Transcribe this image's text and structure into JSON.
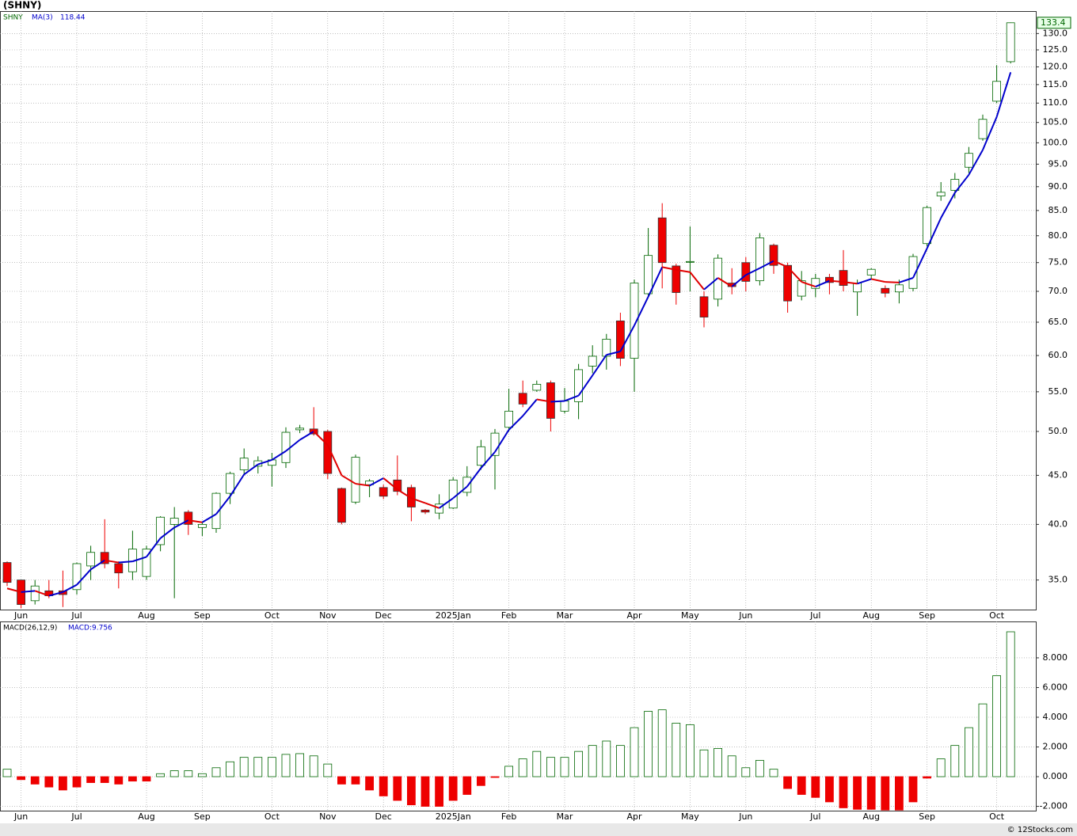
{
  "chart_data": [
    {
      "type": "candlestick",
      "title": "(SHNY)",
      "log_scale": true,
      "grid": true,
      "categories": [
        null,
        "Jun",
        null,
        null,
        null,
        "Jul",
        null,
        null,
        null,
        null,
        "Aug",
        null,
        null,
        null,
        "Sep",
        null,
        null,
        null,
        null,
        "Oct",
        null,
        null,
        null,
        "Nov",
        null,
        null,
        null,
        "Dec",
        null,
        null,
        null,
        null,
        "2025Jan",
        null,
        null,
        null,
        "Feb",
        null,
        null,
        null,
        "Mar",
        null,
        null,
        null,
        null,
        "Apr",
        null,
        null,
        null,
        "May",
        null,
        null,
        null,
        "Jun",
        null,
        null,
        null,
        null,
        "Jul",
        null,
        null,
        null,
        "Aug",
        null,
        null,
        null,
        "Sep",
        null,
        null,
        null,
        null,
        "Oct",
        null
      ],
      "series": [
        {
          "name": "SHNY",
          "up_color": "#006600",
          "down_color": "#ee0000",
          "open": [
            36.5,
            35.0,
            33.3,
            34.1,
            34.1,
            34.2,
            36.2,
            37.4,
            36.4,
            35.7,
            35.3,
            38.1,
            40.0,
            41.2,
            39.7,
            39.6,
            43.1,
            45.6,
            46.0,
            46.1,
            46.4,
            50.2,
            50.3,
            50.0,
            43.6,
            42.2,
            44.0,
            43.7,
            44.5,
            43.7,
            41.4,
            41.1,
            41.6,
            43.2,
            46.1,
            47.2,
            50.5,
            54.8,
            55.2,
            56.2,
            52.5,
            53.7,
            58.5,
            59.9,
            65.2,
            59.6,
            69.6,
            83.5,
            74.4,
            75.1,
            69.1,
            68.7,
            71.4,
            75.0,
            71.8,
            78.2,
            74.5,
            69.2,
            70.5,
            72.4,
            73.6,
            69.9,
            72.8,
            70.5,
            69.9,
            70.5,
            78.5,
            88.0,
            89.2,
            94.3,
            101.0,
            110.5,
            121.5
          ],
          "high": [
            36.6,
            35.0,
            35.0,
            35.0,
            35.8,
            36.5,
            38.0,
            40.5,
            36.6,
            39.4,
            38.0,
            40.8,
            41.7,
            41.4,
            40.2,
            43.2,
            45.4,
            48.0,
            47.1,
            47.5,
            50.5,
            50.8,
            53.0,
            50.2,
            43.7,
            47.3,
            44.6,
            44.0,
            47.2,
            44.0,
            41.5,
            43.0,
            44.8,
            46.0,
            49.0,
            50.3,
            55.4,
            56.5,
            56.5,
            56.5,
            55.5,
            58.8,
            61.5,
            63.2,
            66.5,
            72.0,
            81.5,
            86.5,
            74.8,
            81.8,
            70.0,
            76.5,
            74.0,
            76.0,
            80.5,
            78.5,
            75.0,
            73.5,
            73.0,
            73.0,
            77.3,
            72.0,
            74.0,
            71.0,
            72.0,
            76.6,
            86.0,
            91.0,
            93.0,
            99.0,
            107.0,
            120.5,
            133.5
          ],
          "low": [
            34.5,
            32.7,
            33.0,
            33.5,
            32.8,
            33.8,
            35.0,
            36.0,
            34.3,
            35.0,
            35.0,
            37.5,
            33.5,
            39.0,
            38.9,
            39.2,
            42.0,
            45.0,
            45.2,
            43.8,
            45.8,
            49.8,
            49.5,
            44.6,
            40.0,
            42.0,
            42.7,
            42.5,
            42.9,
            40.3,
            41.0,
            40.5,
            41.5,
            42.8,
            45.6,
            43.5,
            50.0,
            53.0,
            55.0,
            50.0,
            52.2,
            51.5,
            57.5,
            58.0,
            58.5,
            55.0,
            69.0,
            70.5,
            67.8,
            70.0,
            64.2,
            67.5,
            69.5,
            70.0,
            71.0,
            73.0,
            66.5,
            68.5,
            69.0,
            69.5,
            70.0,
            66.0,
            72.0,
            69.0,
            68.0,
            70.0,
            78.0,
            87.0,
            87.5,
            93.0,
            100.5,
            110.0,
            121.0
          ],
          "close": [
            34.8,
            33.0,
            34.5,
            33.7,
            33.8,
            36.4,
            37.4,
            36.4,
            35.6,
            37.7,
            37.7,
            40.7,
            40.6,
            40.0,
            40.0,
            43.1,
            45.2,
            46.9,
            46.6,
            46.7,
            49.9,
            50.4,
            49.7,
            45.2,
            40.2,
            47.0,
            44.4,
            42.8,
            43.3,
            41.7,
            41.2,
            42.0,
            44.5,
            44.8,
            48.2,
            49.8,
            52.5,
            53.4,
            56.0,
            51.6,
            53.8,
            58.0,
            59.9,
            62.4,
            59.6,
            71.4,
            76.3,
            75.0,
            69.8,
            75.2,
            65.8,
            75.8,
            70.8,
            71.7,
            79.6,
            74.5,
            68.4,
            71.8,
            72.2,
            71.5,
            71.0,
            71.4,
            73.8,
            69.7,
            71.1,
            76.1,
            85.6,
            88.8,
            91.6,
            97.5,
            105.8,
            115.9,
            133.4
          ]
        },
        {
          "name": "MA(3)",
          "up_color": "#0000cc",
          "down_color": "#e00000",
          "values": [
            34.3,
            34.0,
            34.1,
            33.7,
            34.0,
            34.6,
            35.9,
            36.7,
            36.5,
            36.6,
            37.0,
            38.7,
            39.7,
            40.4,
            40.2,
            41.0,
            42.8,
            45.1,
            46.2,
            46.7,
            47.7,
            49.0,
            50.0,
            48.4,
            45.0,
            44.1,
            43.9,
            44.7,
            43.5,
            42.6,
            42.1,
            41.6,
            42.6,
            43.8,
            45.8,
            47.6,
            50.2,
            51.9,
            54.0,
            53.7,
            53.8,
            54.5,
            57.2,
            60.1,
            60.6,
            64.5,
            69.1,
            74.2,
            73.7,
            73.3,
            70.3,
            72.3,
            70.8,
            72.8,
            74.0,
            75.3,
            74.2,
            71.6,
            70.8,
            71.8,
            71.6,
            71.3,
            72.1,
            71.6,
            71.5,
            72.3,
            77.6,
            83.5,
            88.7,
            92.6,
            98.3,
            106.4,
            118.44
          ]
        }
      ],
      "ylim": [
        32.6,
        137.2
      ],
      "yticks": [
        {
          "value": 35,
          "label": "35.0"
        },
        {
          "value": 40,
          "label": "40.0"
        },
        {
          "value": 45,
          "label": "45.0"
        },
        {
          "value": 50,
          "label": "50.0"
        },
        {
          "value": 55,
          "label": "55.0"
        },
        {
          "value": 60,
          "label": "60.0"
        },
        {
          "value": 65,
          "label": "65.0"
        },
        {
          "value": 70,
          "label": "70.0"
        },
        {
          "value": 75,
          "label": "75.0"
        },
        {
          "value": 80,
          "label": "80.0"
        },
        {
          "value": 85,
          "label": "85.0"
        },
        {
          "value": 90,
          "label": "90.0"
        },
        {
          "value": 95,
          "label": "95.0"
        },
        {
          "value": 100,
          "label": "100.0"
        },
        {
          "value": 105,
          "label": "105.0"
        },
        {
          "value": 110,
          "label": "110.0"
        },
        {
          "value": 115,
          "label": "115.0"
        },
        {
          "value": 120,
          "label": "120.0"
        },
        {
          "value": 125,
          "label": "125.0"
        },
        {
          "value": 130,
          "label": "130.0"
        }
      ]
    },
    {
      "type": "bar",
      "title": "MACD(26,12,9)",
      "value_label": "MACD:9.756",
      "grid": true,
      "pos_color": "#006600",
      "neg_color": "#ee0000",
      "categories": [
        null,
        "Jun",
        null,
        null,
        null,
        "Jul",
        null,
        null,
        null,
        null,
        "Aug",
        null,
        null,
        null,
        "Sep",
        null,
        null,
        null,
        null,
        "Oct",
        null,
        null,
        null,
        "Nov",
        null,
        null,
        null,
        "Dec",
        null,
        null,
        null,
        null,
        "2025Jan",
        null,
        null,
        null,
        "Feb",
        null,
        null,
        null,
        "Mar",
        null,
        null,
        null,
        null,
        "Apr",
        null,
        null,
        null,
        "May",
        null,
        null,
        null,
        "Jun",
        null,
        null,
        null,
        null,
        "Jul",
        null,
        null,
        null,
        "Aug",
        null,
        null,
        null,
        "Sep",
        null,
        null,
        null,
        null,
        "Oct",
        null
      ],
      "values": [
        0.5,
        -0.2,
        -0.5,
        -0.7,
        -0.9,
        -0.7,
        -0.4,
        -0.4,
        -0.5,
        -0.3,
        -0.3,
        0.2,
        0.4,
        0.4,
        0.2,
        0.6,
        1.0,
        1.3,
        1.3,
        1.3,
        1.5,
        1.55,
        1.4,
        0.85,
        -0.5,
        -0.5,
        -0.9,
        -1.3,
        -1.6,
        -1.9,
        -2.0,
        -2.0,
        -1.6,
        -1.2,
        -0.6,
        -0.05,
        0.7,
        1.2,
        1.7,
        1.3,
        1.3,
        1.7,
        2.1,
        2.4,
        2.1,
        3.3,
        4.4,
        4.5,
        3.6,
        3.5,
        1.8,
        1.9,
        1.4,
        0.6,
        1.1,
        0.5,
        -0.8,
        -1.2,
        -1.4,
        -1.7,
        -2.1,
        -2.2,
        -2.2,
        -2.25,
        -2.25,
        -1.7,
        -0.1,
        1.2,
        2.1,
        3.3,
        4.9,
        6.8,
        9.756
      ],
      "ylim": [
        -2.29,
        10.45
      ],
      "yticks": [
        {
          "value": -2,
          "label": "-2.000"
        },
        {
          "value": 0,
          "label": "0.000"
        },
        {
          "value": 2,
          "label": "2.000"
        },
        {
          "value": 4,
          "label": "4.000"
        },
        {
          "value": 6,
          "label": "6.000"
        },
        {
          "value": 8,
          "label": "8.000"
        }
      ]
    }
  ],
  "footer": "© 12Stocks.com"
}
